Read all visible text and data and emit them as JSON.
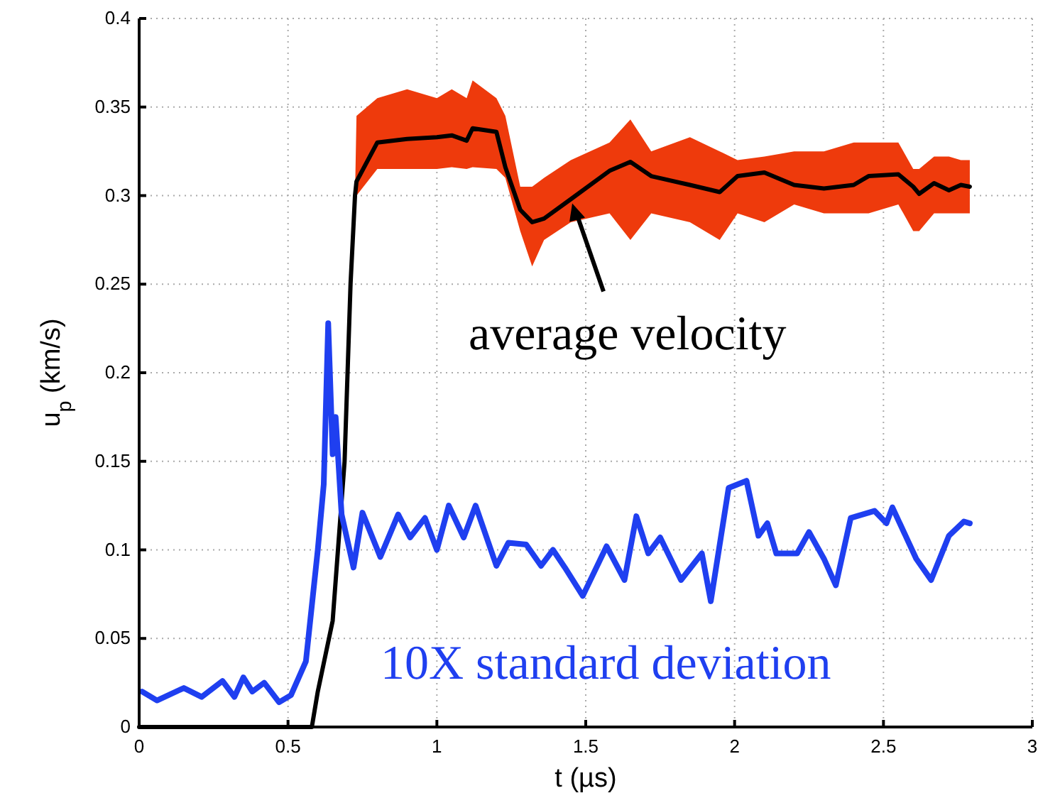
{
  "chart_data": {
    "type": "line",
    "xlabel": "t (µs)",
    "ylabel": "u$_{p}$ (km/s)",
    "xlim": [
      0,
      3
    ],
    "ylim": [
      0,
      0.4
    ],
    "xticks": [
      0,
      0.5,
      1,
      1.5,
      2,
      2.5,
      3
    ],
    "yticks": [
      0,
      0.05,
      0.1,
      0.15,
      0.2,
      0.25,
      0.3,
      0.35,
      0.4
    ],
    "grid": true,
    "line_style": "solid",
    "marker": "none",
    "series": [
      {
        "name": "average velocity",
        "color": "#000000",
        "x": [
          0,
          0.3,
          0.58,
          0.6,
          0.65,
          0.69,
          0.71,
          0.725,
          0.73,
          0.8,
          0.9,
          1.0,
          1.05,
          1.1,
          1.12,
          1.2,
          1.23,
          1.28,
          1.32,
          1.36,
          1.45,
          1.58,
          1.65,
          1.72,
          1.85,
          1.95,
          2.01,
          2.1,
          2.2,
          2.3,
          2.4,
          2.45,
          2.55,
          2.6,
          2.62,
          2.67,
          2.72,
          2.76,
          2.79
        ],
        "values": [
          0,
          0,
          0,
          0.02,
          0.06,
          0.15,
          0.25,
          0.3,
          0.308,
          0.33,
          0.332,
          0.333,
          0.334,
          0.331,
          0.338,
          0.336,
          0.316,
          0.292,
          0.285,
          0.287,
          0.298,
          0.314,
          0.319,
          0.311,
          0.306,
          0.302,
          0.311,
          0.313,
          0.306,
          0.304,
          0.306,
          0.311,
          0.312,
          0.305,
          0.301,
          0.307,
          0.303,
          0.306,
          0.305
        ],
        "lower": [
          null,
          null,
          null,
          null,
          null,
          null,
          null,
          0.3,
          0.3,
          0.315,
          0.315,
          0.315,
          0.316,
          0.315,
          0.316,
          0.315,
          0.31,
          0.28,
          0.26,
          0.275,
          0.285,
          0.29,
          0.275,
          0.29,
          0.285,
          0.275,
          0.29,
          0.285,
          0.295,
          0.29,
          0.29,
          0.29,
          0.295,
          0.28,
          0.28,
          0.29,
          0.29,
          0.29,
          0.29
        ],
        "upper": [
          null,
          null,
          null,
          null,
          null,
          null,
          null,
          0.3,
          0.345,
          0.355,
          0.36,
          0.355,
          0.36,
          0.355,
          0.365,
          0.355,
          0.345,
          0.305,
          0.305,
          0.31,
          0.32,
          0.33,
          0.343,
          0.325,
          0.333,
          0.325,
          0.32,
          0.322,
          0.325,
          0.325,
          0.33,
          0.33,
          0.33,
          0.315,
          0.315,
          0.322,
          0.322,
          0.32,
          0.32
        ]
      },
      {
        "name": "10X standard deviation",
        "color": "#1f3ff0",
        "x": [
          0.01,
          0.06,
          0.15,
          0.21,
          0.28,
          0.32,
          0.35,
          0.38,
          0.42,
          0.47,
          0.51,
          0.56,
          0.6,
          0.62,
          0.635,
          0.65,
          0.66,
          0.68,
          0.72,
          0.75,
          0.81,
          0.87,
          0.91,
          0.96,
          1.0,
          1.04,
          1.09,
          1.13,
          1.2,
          1.24,
          1.3,
          1.35,
          1.39,
          1.43,
          1.49,
          1.57,
          1.63,
          1.67,
          1.71,
          1.75,
          1.82,
          1.89,
          1.92,
          1.98,
          2.04,
          2.08,
          2.11,
          2.14,
          2.21,
          2.25,
          2.3,
          2.34,
          2.39,
          2.47,
          2.51,
          2.53,
          2.61,
          2.66,
          2.72,
          2.77,
          2.79
        ],
        "values": [
          0.02,
          0.015,
          0.022,
          0.017,
          0.026,
          0.017,
          0.028,
          0.02,
          0.025,
          0.014,
          0.018,
          0.037,
          0.1,
          0.137,
          0.228,
          0.154,
          0.175,
          0.12,
          0.09,
          0.121,
          0.096,
          0.12,
          0.107,
          0.118,
          0.1,
          0.125,
          0.107,
          0.125,
          0.091,
          0.104,
          0.103,
          0.091,
          0.1,
          0.09,
          0.074,
          0.102,
          0.083,
          0.119,
          0.098,
          0.107,
          0.083,
          0.098,
          0.071,
          0.135,
          0.139,
          0.108,
          0.115,
          0.098,
          0.098,
          0.11,
          0.095,
          0.08,
          0.118,
          0.122,
          0.115,
          0.124,
          0.095,
          0.083,
          0.108,
          0.116,
          0.115
        ]
      }
    ]
  }
}
